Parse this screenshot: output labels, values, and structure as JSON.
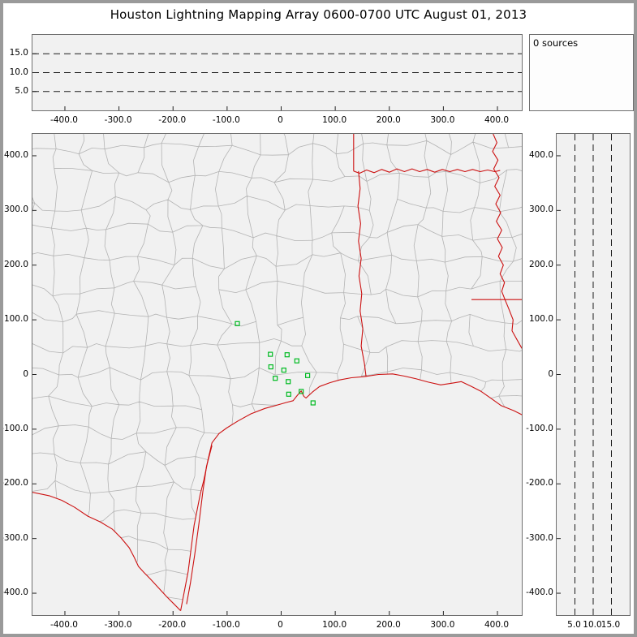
{
  "title": "Houston Lightning Mapping Array   0600-0700 UTC  August 01, 2013",
  "colors": {
    "panel_bg": "#f1f1f1",
    "county_line": "#b3b3b3",
    "state_line": "#cc1111",
    "station": "#00bb22",
    "dash_line": "#1a1a1a",
    "tick": "#222222"
  },
  "chart_data": {
    "type": "scatter",
    "title": "Houston Lightning Mapping Array",
    "time_range": "0600-0700 UTC",
    "date": "August 01, 2013",
    "panels": {
      "ew_altitude": {
        "description": "altitude vs east-west distance, no sources plotted",
        "xlim": [
          -460,
          445
        ],
        "ylim": [
          0,
          20
        ],
        "xticks": [
          -400,
          -300,
          -200,
          -100,
          0,
          100,
          200,
          300,
          400
        ],
        "yticks": [
          5,
          10,
          15
        ],
        "grid": "horizontal-dashed",
        "points": []
      },
      "source_count": {
        "label": "0 sources",
        "values": []
      },
      "plan_view": {
        "description": "plan view map with LMA station locations (km east / km north)",
        "xlim": [
          -460,
          445
        ],
        "ylim": [
          -440,
          440
        ],
        "xticks": [
          -400,
          -300,
          -200,
          -100,
          0,
          100,
          200,
          300,
          400
        ],
        "yticks": [
          400,
          300,
          200,
          100,
          0,
          -100,
          -200,
          -300,
          -400
        ],
        "points": [],
        "stations_km": [
          [
            -81,
            93
          ],
          [
            -20,
            37
          ],
          [
            11,
            36
          ],
          [
            29,
            25
          ],
          [
            -19,
            14
          ],
          [
            5,
            8
          ],
          [
            -11,
            -7
          ],
          [
            13,
            -13
          ],
          [
            49,
            -2
          ],
          [
            37,
            -31
          ],
          [
            14,
            -36
          ],
          [
            59,
            -52
          ]
        ],
        "borders": {
          "ok_border_vertical": [
            [
              134,
              440
            ],
            [
              134,
              372
            ]
          ],
          "red_river": [
            [
              134,
              372
            ],
            [
              145,
              368
            ],
            [
              158,
              374
            ],
            [
              172,
              369
            ],
            [
              186,
              375
            ],
            [
              200,
              370
            ],
            [
              214,
              376
            ],
            [
              228,
              371
            ],
            [
              242,
              376
            ],
            [
              256,
              371
            ],
            [
              270,
              375
            ],
            [
              284,
              370
            ],
            [
              298,
              375
            ],
            [
              312,
              371
            ],
            [
              326,
              375
            ],
            [
              340,
              371
            ],
            [
              354,
              375
            ],
            [
              368,
              371
            ],
            [
              382,
              374
            ],
            [
              395,
              371
            ],
            [
              405,
              373
            ]
          ],
          "tx_east_border": [
            [
              143,
              372
            ],
            [
              146,
              340
            ],
            [
              142,
              308
            ],
            [
              147,
              276
            ],
            [
              143,
              244
            ],
            [
              148,
              212
            ],
            [
              144,
              180
            ],
            [
              149,
              148
            ],
            [
              146,
              116
            ],
            [
              151,
              84
            ],
            [
              148,
              52
            ],
            [
              154,
              20
            ],
            [
              157,
              -4
            ]
          ],
          "ar_la_border": [
            [
              352,
              137
            ],
            [
              448,
              137
            ]
          ],
          "ms_river": [
            [
              392,
              440
            ],
            [
              399,
              424
            ],
            [
              391,
              408
            ],
            [
              401,
              392
            ],
            [
              393,
              376
            ],
            [
              403,
              360
            ],
            [
              395,
              344
            ],
            [
              405,
              328
            ],
            [
              397,
              312
            ],
            [
              406,
              296
            ],
            [
              398,
              280
            ],
            [
              408,
              264
            ],
            [
              400,
              248
            ],
            [
              409,
              232
            ],
            [
              402,
              216
            ],
            [
              411,
              200
            ],
            [
              405,
              184
            ],
            [
              413,
              168
            ],
            [
              408,
              152
            ],
            [
              414,
              137
            ],
            [
              421,
              120
            ],
            [
              429,
              100
            ],
            [
              427,
              80
            ],
            [
              437,
              62
            ],
            [
              444,
              50
            ],
            [
              450,
              40
            ]
          ],
          "rio_grande": [
            [
              -462,
              -215
            ],
            [
              -428,
              -222
            ],
            [
              -406,
              -230
            ],
            [
              -382,
              -243
            ],
            [
              -358,
              -259
            ],
            [
              -334,
              -270
            ],
            [
              -312,
              -283
            ],
            [
              -296,
              -299
            ],
            [
              -281,
              -317
            ],
            [
              -272,
              -334
            ],
            [
              -264,
              -351
            ],
            [
              -254,
              -362
            ],
            [
              -242,
              -374
            ],
            [
              -227,
              -390
            ],
            [
              -212,
              -406
            ],
            [
              -199,
              -419
            ],
            [
              -186,
              -432
            ]
          ],
          "coastline": [
            [
              -186,
              -432
            ],
            [
              -172,
              -360
            ],
            [
              -161,
              -276
            ],
            [
              -150,
              -220
            ],
            [
              -143,
              -193
            ],
            [
              -135,
              -155
            ],
            [
              -128,
              -125
            ],
            [
              -115,
              -108
            ],
            [
              -101,
              -98
            ],
            [
              -80,
              -85
            ],
            [
              -56,
              -72
            ],
            [
              -30,
              -62
            ],
            [
              -11,
              -57
            ],
            [
              10,
              -51
            ],
            [
              22,
              -48
            ],
            [
              30,
              -38
            ],
            [
              37,
              -30
            ],
            [
              42,
              -40
            ],
            [
              46,
              -43
            ],
            [
              58,
              -32
            ],
            [
              71,
              -22
            ],
            [
              90,
              -15
            ],
            [
              108,
              -10
            ],
            [
              130,
              -6
            ],
            [
              153,
              -4
            ],
            [
              180,
              0
            ],
            [
              206,
              1
            ],
            [
              228,
              -3
            ],
            [
              250,
              -8
            ],
            [
              272,
              -14
            ],
            [
              295,
              -19
            ],
            [
              315,
              -16
            ],
            [
              333,
              -13
            ],
            [
              352,
              -22
            ],
            [
              370,
              -31
            ],
            [
              390,
              -45
            ],
            [
              407,
              -57
            ],
            [
              430,
              -66
            ],
            [
              448,
              -75
            ]
          ],
          "barrier_island": [
            [
              -175,
              -420
            ],
            [
              -168,
              -382
            ],
            [
              -160,
              -330
            ],
            [
              -152,
              -272
            ],
            [
              -145,
              -215
            ],
            [
              -138,
              -168
            ],
            [
              -128,
              -130
            ]
          ]
        }
      },
      "ns_altitude": {
        "description": "altitude vs north-south distance, no sources plotted",
        "xlim": [
          0,
          20
        ],
        "ylim": [
          -440,
          440
        ],
        "xticks": [
          5,
          10,
          15
        ],
        "yticks": [
          400,
          300,
          200,
          100,
          0,
          -100,
          -200,
          -300,
          -400
        ],
        "grid": "vertical-dashed",
        "points": []
      }
    }
  }
}
